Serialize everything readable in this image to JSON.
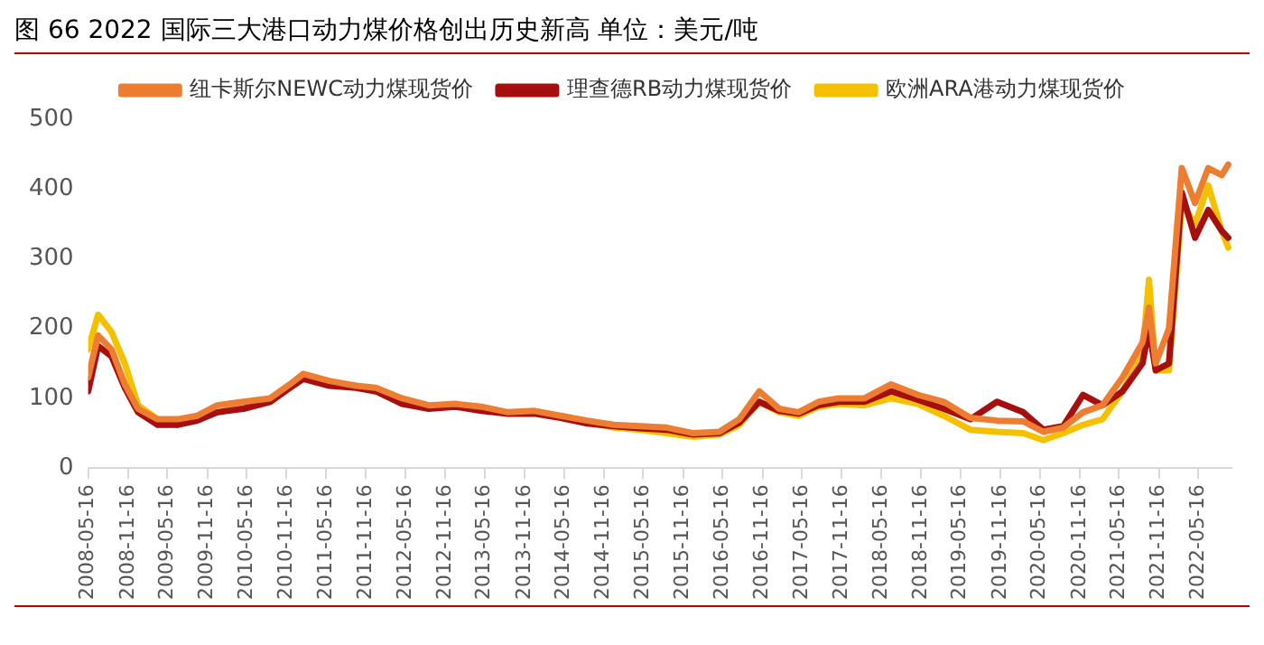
{
  "chart_data": {
    "type": "line",
    "title": "图 66 2022 国际三大港口动力煤价格创出历史新高  单位：美元/吨",
    "xlim": [
      "2008-05-16",
      "2022-10-16"
    ],
    "xticks": [
      "2008-05-16",
      "2008-11-16",
      "2009-05-16",
      "2009-11-16",
      "2010-05-16",
      "2010-11-16",
      "2011-05-16",
      "2011-11-16",
      "2012-05-16",
      "2012-11-16",
      "2013-05-16",
      "2013-11-16",
      "2014-05-16",
      "2014-11-16",
      "2015-05-16",
      "2015-11-16",
      "2016-05-16",
      "2016-11-16",
      "2017-05-16",
      "2017-11-16",
      "2018-05-16",
      "2018-11-16",
      "2019-05-16",
      "2019-11-16",
      "2020-05-16",
      "2020-11-16",
      "2021-05-16",
      "2021-11-16",
      "2022-05-16"
    ],
    "ylim": [
      0,
      500
    ],
    "yticks": [
      0,
      100,
      200,
      300,
      400,
      500
    ],
    "grid": false,
    "legend": "top",
    "marker": "none",
    "line_style": "solid",
    "x": [
      "2008-05-16",
      "2008-07",
      "2008-09",
      "2008-11",
      "2009-01",
      "2009-04",
      "2009-07",
      "2009-10",
      "2010-01",
      "2010-05",
      "2010-09",
      "2010-12",
      "2011-02",
      "2011-06",
      "2011-10",
      "2012-01",
      "2012-05",
      "2012-09",
      "2013-01",
      "2013-05",
      "2013-09",
      "2014-01",
      "2014-05",
      "2014-09",
      "2015-01",
      "2015-05",
      "2015-09",
      "2016-01",
      "2016-05",
      "2016-08",
      "2016-11",
      "2017-02",
      "2017-05",
      "2017-08",
      "2017-11",
      "2018-03",
      "2018-07",
      "2018-11",
      "2019-03",
      "2019-07",
      "2019-11",
      "2020-03",
      "2020-06",
      "2020-09",
      "2020-12",
      "2021-03",
      "2021-06",
      "2021-09",
      "2021-10",
      "2021-11",
      "2022-01",
      "2022-03",
      "2022-05",
      "2022-07",
      "2022-09",
      "2022-10"
    ],
    "series": [
      {
        "name": "纽卡斯尔NEWC动力煤现货价",
        "color": "#ed7d31",
        "values": [
          130,
          190,
          170,
          120,
          85,
          70,
          70,
          75,
          90,
          95,
          100,
          120,
          135,
          125,
          118,
          115,
          100,
          90,
          92,
          88,
          80,
          82,
          75,
          68,
          62,
          60,
          58,
          50,
          52,
          70,
          110,
          85,
          80,
          95,
          100,
          100,
          120,
          105,
          95,
          72,
          68,
          67,
          52,
          58,
          80,
          90,
          130,
          180,
          230,
          150,
          200,
          430,
          380,
          430,
          420,
          435
        ]
      },
      {
        "name": "理查德RB动力煤现货价",
        "color": "#a50f0f",
        "values": [
          110,
          175,
          160,
          115,
          80,
          62,
          62,
          68,
          80,
          85,
          95,
          115,
          128,
          118,
          115,
          110,
          92,
          85,
          88,
          82,
          78,
          78,
          72,
          64,
          60,
          57,
          55,
          48,
          50,
          65,
          95,
          82,
          78,
          90,
          95,
          95,
          110,
          98,
          85,
          70,
          95,
          80,
          55,
          60,
          105,
          90,
          110,
          150,
          200,
          140,
          150,
          395,
          330,
          370,
          340,
          330
        ]
      },
      {
        "name": "欧洲ARA港动力煤现货价",
        "color": "#f5c000",
        "values": [
          170,
          220,
          195,
          150,
          90,
          70,
          62,
          72,
          80,
          88,
          95,
          118,
          132,
          122,
          118,
          112,
          95,
          86,
          90,
          84,
          78,
          80,
          74,
          66,
          58,
          55,
          50,
          45,
          48,
          62,
          95,
          80,
          75,
          88,
          92,
          90,
          100,
          92,
          75,
          55,
          52,
          50,
          40,
          50,
          62,
          70,
          110,
          165,
          270,
          140,
          140,
          380,
          350,
          405,
          340,
          316
        ]
      }
    ]
  }
}
